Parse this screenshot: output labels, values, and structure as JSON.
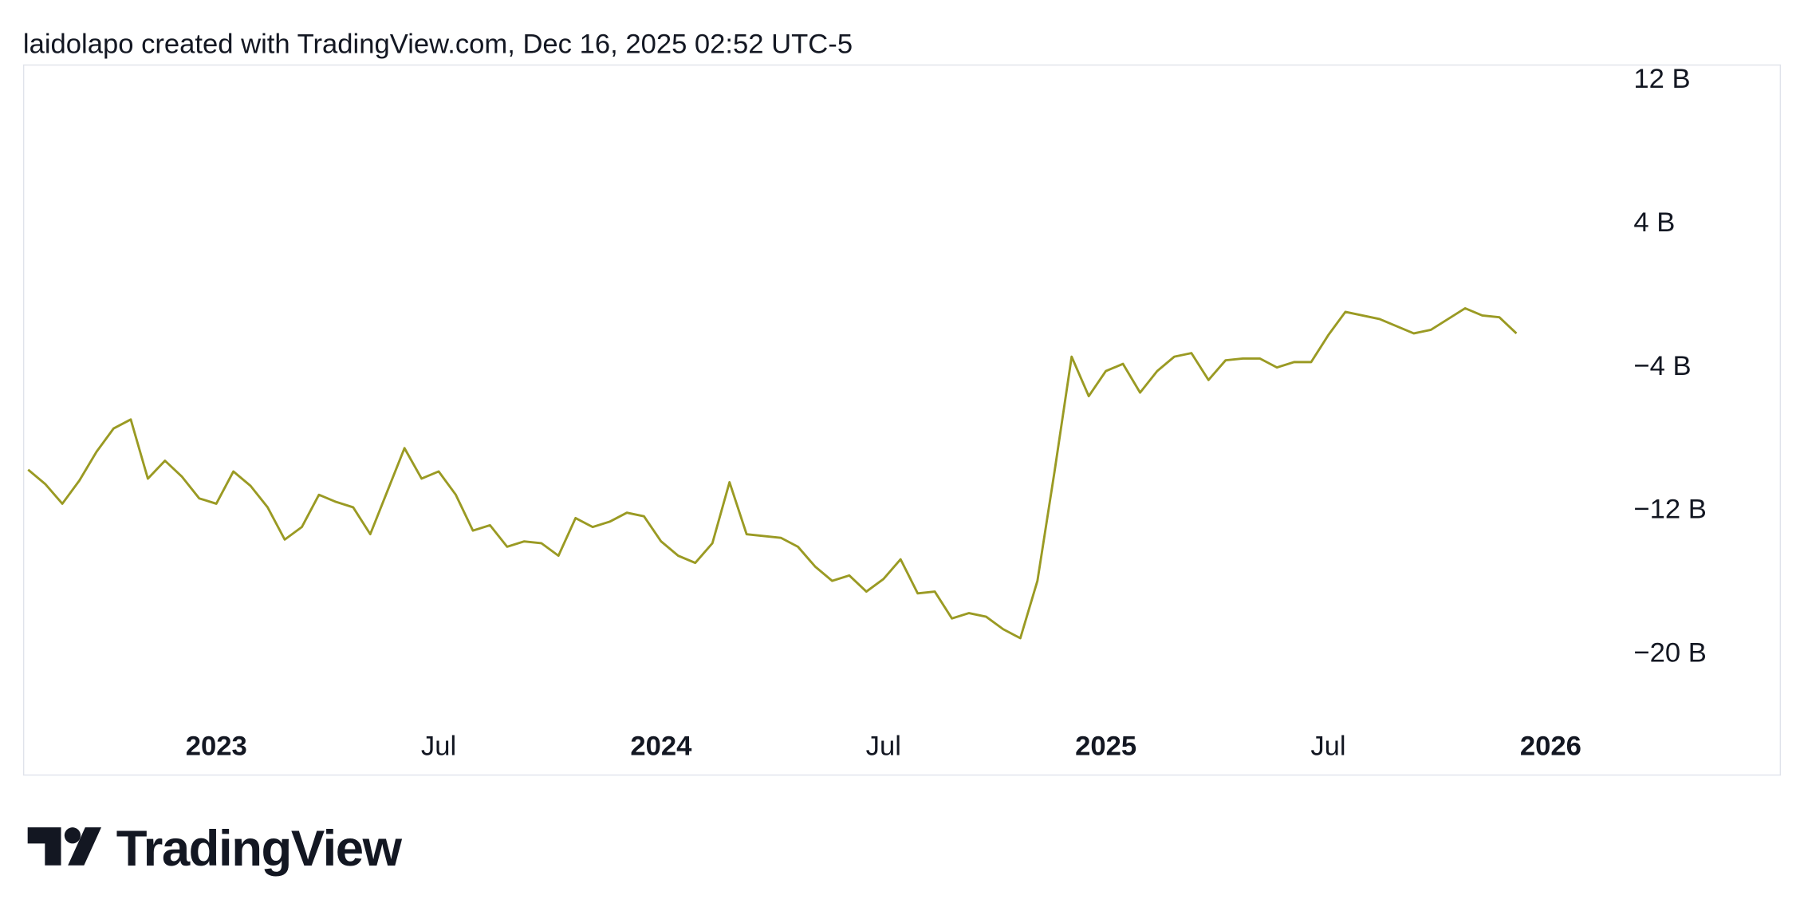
{
  "header": {
    "text": "laidolapo created with TradingView.com, Dec 16, 2025 02:52 UTC-5"
  },
  "brand": {
    "text": "TradingView"
  },
  "chart_data": {
    "type": "line",
    "categories": [
      null,
      null,
      null,
      null,
      null,
      null,
      null,
      null,
      null,
      null,
      null,
      "2023",
      null,
      null,
      null,
      null,
      null,
      null,
      null,
      null,
      null,
      null,
      null,
      null,
      "Jul",
      null,
      null,
      null,
      null,
      null,
      null,
      null,
      null,
      null,
      null,
      null,
      null,
      "2024",
      null,
      null,
      null,
      null,
      null,
      null,
      null,
      null,
      null,
      null,
      null,
      null,
      "Jul",
      null,
      null,
      null,
      null,
      null,
      null,
      null,
      null,
      null,
      null,
      null,
      null,
      "2025",
      null,
      null,
      null,
      null,
      null,
      null,
      null,
      null,
      null,
      null,
      null,
      null,
      "Jul",
      null,
      null,
      null,
      null,
      null,
      null,
      null,
      null,
      null,
      null,
      null,
      null,
      "2026"
    ],
    "series": [
      {
        "color": "#9a9a23",
        "values": [
          -9.7,
          -10.5,
          -11.6,
          -10.3,
          -8.7,
          -7.4,
          -6.9,
          -10.2,
          -9.2,
          -10.1,
          -11.3,
          -11.6,
          -9.8,
          -10.6,
          -11.8,
          -13.6,
          -12.9,
          -11.1,
          -11.5,
          -11.8,
          -13.3,
          -10.9,
          -8.5,
          -10.2,
          -9.8,
          -11.1,
          -13.1,
          -12.8,
          -14.0,
          -13.7,
          -13.8,
          -14.5,
          -12.4,
          -12.9,
          -12.6,
          -12.1,
          -12.3,
          -13.7,
          -14.5,
          -14.9,
          -13.8,
          -10.4,
          -13.3,
          -13.4,
          -13.5,
          -14.0,
          -15.1,
          -15.9,
          -15.6,
          -16.5,
          -15.8,
          -14.7,
          -16.6,
          -16.5,
          -18.0,
          -17.7,
          -17.9,
          -18.6,
          -19.1,
          -15.9,
          -9.8,
          -3.4,
          -5.6,
          -4.2,
          -3.8,
          -5.4,
          -4.2,
          -3.4,
          -3.2,
          -4.7,
          -3.6,
          -3.5,
          -3.5,
          -4.0,
          -3.7,
          -3.7,
          -2.2,
          -0.9,
          -1.1,
          -1.3,
          -1.7,
          -2.1,
          -1.9,
          -1.3,
          -0.7,
          -1.1,
          -1.2,
          -2.1,
          null,
          null
        ]
      }
    ],
    "ylim": [
      -26.7,
      12.9
    ],
    "yticks": [
      {
        "value": 12,
        "label": "12 B"
      },
      {
        "value": 4,
        "label": "4 B"
      },
      {
        "value": -4,
        "label": "−4 B"
      },
      {
        "value": -12,
        "label": "−12 B"
      },
      {
        "value": -20,
        "label": "−20 B"
      }
    ],
    "grid": false
  }
}
